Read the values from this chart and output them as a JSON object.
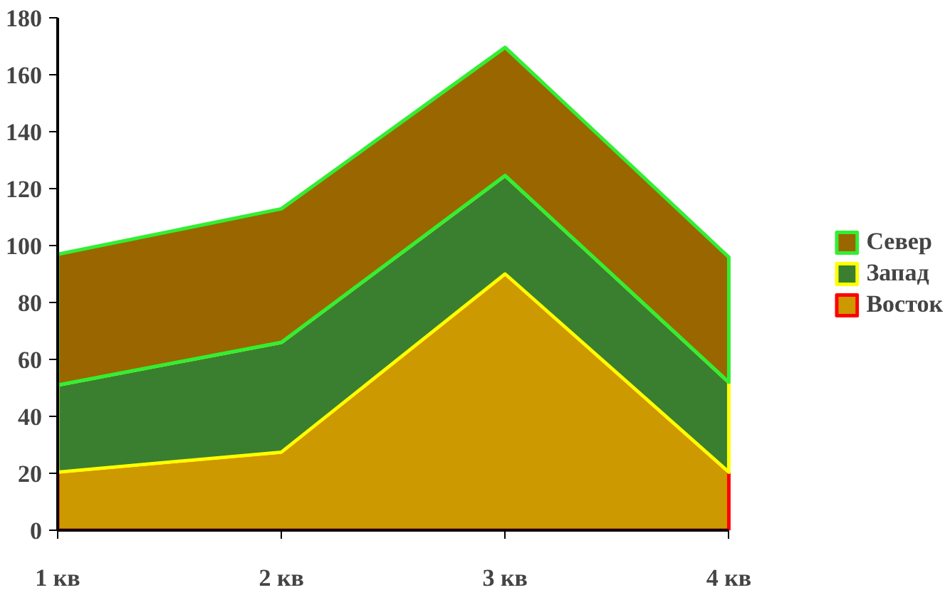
{
  "chart_data": {
    "type": "area",
    "stacked": true,
    "categories": [
      "1 кв",
      "2 кв",
      "3 кв",
      "4 кв"
    ],
    "series": [
      {
        "name": "Восток",
        "color": "#cc9900",
        "values": [
          20.4,
          27.4,
          90,
          20.4
        ]
      },
      {
        "name": "Запад",
        "color": "#3a7f30",
        "values": [
          30.6,
          38.6,
          34.6,
          31.6
        ]
      },
      {
        "name": "Север",
        "color": "#996600",
        "values": [
          45.9,
          46.9,
          45,
          43.9
        ]
      }
    ],
    "ylim": [
      0,
      180
    ],
    "yticks": [
      0,
      20,
      40,
      60,
      80,
      100,
      120,
      140,
      160,
      180
    ],
    "grid": false,
    "legend": "right"
  }
}
